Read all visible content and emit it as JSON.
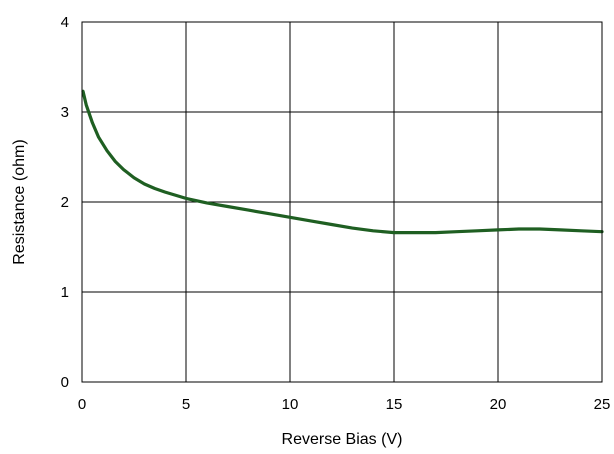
{
  "chart_data": {
    "type": "line",
    "xlabel": "Reverse Bias (V)",
    "ylabel": "Resistance (ohm)",
    "xlim": [
      0,
      25
    ],
    "ylim": [
      0,
      4
    ],
    "x_ticks": [
      0,
      5,
      10,
      15,
      20,
      25
    ],
    "y_ticks": [
      0,
      1,
      2,
      3,
      4
    ],
    "grid": true,
    "legend": "none",
    "series": [
      {
        "color": "#1f5f22",
        "x": [
          0.05,
          0.2,
          0.5,
          0.8,
          1.2,
          1.6,
          2.0,
          2.5,
          3.0,
          3.5,
          4.0,
          5.0,
          6.0,
          7.0,
          8.0,
          9.0,
          10.0,
          11.0,
          12.0,
          13.0,
          14.0,
          15.0,
          16.0,
          17.0,
          18.0,
          19.0,
          20.0,
          21.0,
          22.0,
          23.0,
          24.0,
          25.0
        ],
        "y": [
          3.23,
          3.08,
          2.88,
          2.72,
          2.57,
          2.45,
          2.36,
          2.27,
          2.2,
          2.15,
          2.11,
          2.04,
          1.99,
          1.95,
          1.91,
          1.87,
          1.83,
          1.79,
          1.75,
          1.71,
          1.68,
          1.66,
          1.66,
          1.66,
          1.67,
          1.68,
          1.69,
          1.7,
          1.7,
          1.69,
          1.68,
          1.67
        ]
      }
    ]
  }
}
